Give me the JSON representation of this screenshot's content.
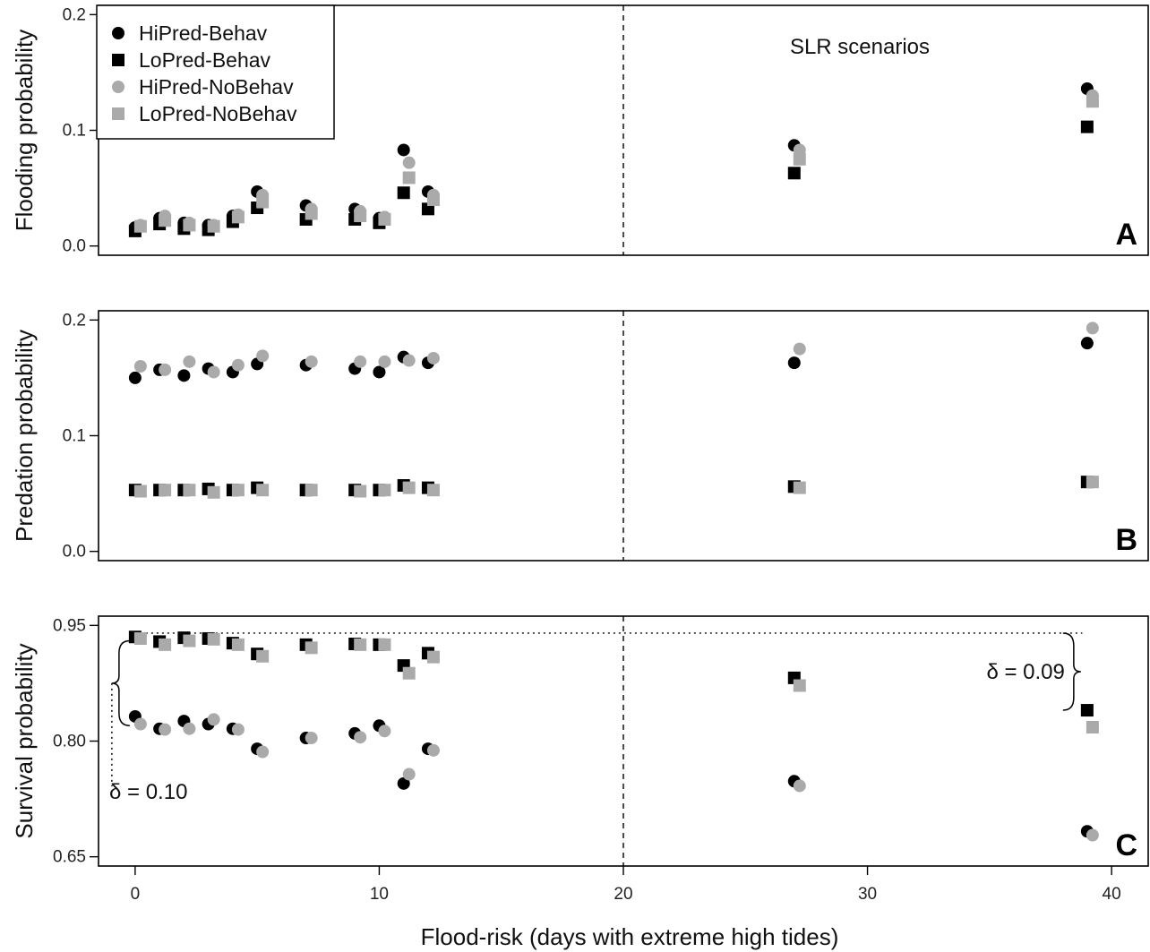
{
  "chart_data": {
    "type": "scatter",
    "x_axis": {
      "label": "Flood-risk (days with extreme high tides)",
      "range": [
        -1.5,
        41.5
      ],
      "ticks": [
        0,
        10,
        20,
        30,
        40
      ],
      "tick_labels": [
        "0",
        "10",
        "20",
        "30",
        "40"
      ]
    },
    "x_categories": [
      0,
      1,
      2,
      3,
      4,
      5,
      7,
      9,
      10,
      11,
      12,
      27,
      39
    ],
    "divider_x": 20,
    "annotation_text": "SLR scenarios",
    "legend": {
      "placement": "top-left of panel A",
      "entries": [
        {
          "name": "HiPred-Behav",
          "marker": "circle",
          "color": "#000000"
        },
        {
          "name": "LoPred-Behav",
          "marker": "square",
          "color": "#000000"
        },
        {
          "name": "HiPred-NoBehav",
          "marker": "circle",
          "color": "#aaaaaa"
        },
        {
          "name": "LoPred-NoBehav",
          "marker": "square",
          "color": "#aaaaaa"
        }
      ]
    },
    "panels": [
      {
        "letter": "A",
        "ylabel": "Flooding probability",
        "ylim": [
          -0.008,
          0.208
        ],
        "yticks": [
          0.0,
          0.1,
          0.2
        ],
        "ytick_labels": [
          "0.0",
          "0.1",
          "0.2"
        ],
        "series": [
          {
            "name": "HiPred-Behav",
            "values": [
              0.016,
              0.024,
              0.02,
              0.018,
              0.026,
              0.047,
              0.035,
              0.032,
              0.024,
              0.083,
              0.047,
              0.087,
              0.136
            ]
          },
          {
            "name": "LoPred-Behav",
            "values": [
              0.013,
              0.019,
              0.015,
              0.014,
              0.021,
              0.033,
              0.023,
              0.023,
              0.02,
              0.046,
              0.032,
              0.063,
              0.103
            ]
          },
          {
            "name": "HiPred-NoBehav",
            "values": [
              0.018,
              0.026,
              0.02,
              0.018,
              0.027,
              0.044,
              0.032,
              0.03,
              0.025,
              0.072,
              0.044,
              0.083,
              0.13
            ]
          },
          {
            "name": "LoPred-NoBehav",
            "values": [
              0.017,
              0.022,
              0.018,
              0.017,
              0.025,
              0.038,
              0.028,
              0.026,
              0.023,
              0.059,
              0.04,
              0.075,
              0.125
            ]
          }
        ]
      },
      {
        "letter": "B",
        "ylabel": "Predation probability",
        "ylim": [
          -0.008,
          0.208
        ],
        "yticks": [
          0.0,
          0.1,
          0.2
        ],
        "ytick_labels": [
          "0.0",
          "0.1",
          "0.2"
        ],
        "series": [
          {
            "name": "HiPred-Behav",
            "values": [
              0.15,
              0.157,
              0.152,
              0.158,
              0.155,
              0.162,
              0.161,
              0.158,
              0.155,
              0.168,
              0.163,
              0.163,
              0.18
            ]
          },
          {
            "name": "LoPred-Behav",
            "values": [
              0.053,
              0.053,
              0.053,
              0.054,
              0.053,
              0.055,
              0.053,
              0.053,
              0.053,
              0.057,
              0.055,
              0.056,
              0.06
            ]
          },
          {
            "name": "HiPred-NoBehav",
            "values": [
              0.16,
              0.157,
              0.164,
              0.155,
              0.161,
              0.169,
              0.164,
              0.164,
              0.164,
              0.165,
              0.167,
              0.175,
              0.193
            ]
          },
          {
            "name": "LoPred-NoBehav",
            "values": [
              0.052,
              0.053,
              0.053,
              0.051,
              0.053,
              0.053,
              0.053,
              0.052,
              0.053,
              0.055,
              0.053,
              0.055,
              0.06
            ]
          }
        ]
      },
      {
        "letter": "C",
        "ylabel": "Survival probability",
        "ylim": [
          0.638,
          0.962
        ],
        "yticks": [
          0.65,
          0.8,
          0.95
        ],
        "ytick_labels": [
          "0.65",
          "0.80",
          "0.95"
        ],
        "series": [
          {
            "name": "HiPred-Behav",
            "values": [
              0.832,
              0.816,
              0.826,
              0.822,
              0.816,
              0.79,
              0.804,
              0.81,
              0.82,
              0.745,
              0.79,
              0.748,
              0.683
            ]
          },
          {
            "name": "LoPred-Behav",
            "values": [
              0.935,
              0.929,
              0.934,
              0.933,
              0.927,
              0.913,
              0.925,
              0.926,
              0.925,
              0.898,
              0.914,
              0.882,
              0.84
            ]
          },
          {
            "name": "HiPred-NoBehav",
            "values": [
              0.822,
              0.815,
              0.816,
              0.828,
              0.815,
              0.786,
              0.804,
              0.805,
              0.813,
              0.757,
              0.788,
              0.742,
              0.678
            ]
          },
          {
            "name": "LoPred-NoBehav",
            "values": [
              0.933,
              0.925,
              0.93,
              0.932,
              0.925,
              0.91,
              0.921,
              0.925,
              0.925,
              0.888,
              0.909,
              0.872,
              0.818
            ]
          }
        ],
        "reference_line_y": 0.94,
        "annotations": [
          {
            "text": "δ = 0.10",
            "x": 0,
            "y_from": 0.82,
            "y_to": 0.93
          },
          {
            "text": "δ = 0.09",
            "x": 39,
            "y_from": 0.84,
            "y_to": 0.93
          }
        ]
      }
    ]
  }
}
